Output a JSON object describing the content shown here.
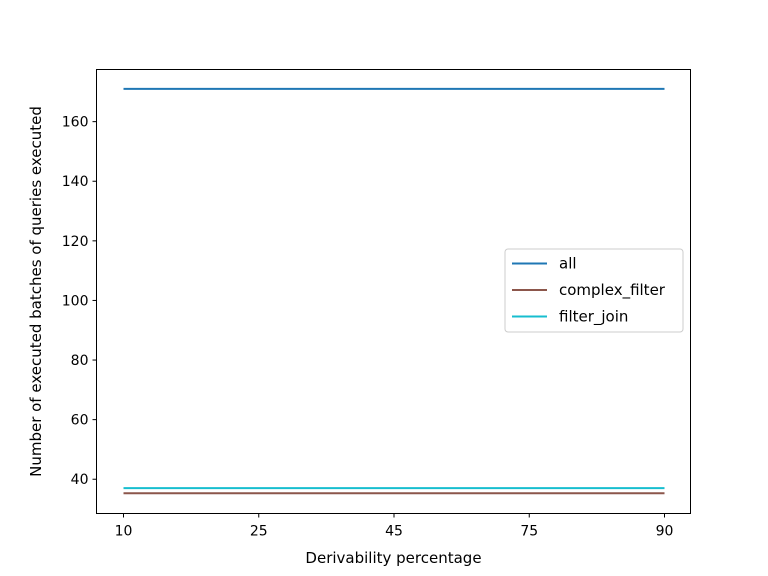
{
  "chart_data": {
    "type": "line",
    "title": "",
    "xlabel": "Derivability percentage",
    "ylabel": "Number of executed batches of queries executed",
    "x": [
      "10",
      "25",
      "45",
      "75",
      "90"
    ],
    "xticks": [
      "10",
      "25",
      "45",
      "75",
      "90"
    ],
    "yticks": [
      "40",
      "60",
      "80",
      "100",
      "120",
      "140",
      "160"
    ],
    "ylim": [
      28.5,
      177.5
    ],
    "legend_position": "center-right",
    "series": [
      {
        "name": "all",
        "color": "#1f77b4",
        "values": [
          171,
          171,
          171,
          171,
          171
        ]
      },
      {
        "name": "complex_filter",
        "color": "#8c564b",
        "values": [
          35.3,
          35.3,
          35.3,
          35.3,
          35.3
        ]
      },
      {
        "name": "filter_join",
        "color": "#17becf",
        "values": [
          37,
          37,
          37,
          37,
          37
        ]
      }
    ]
  }
}
